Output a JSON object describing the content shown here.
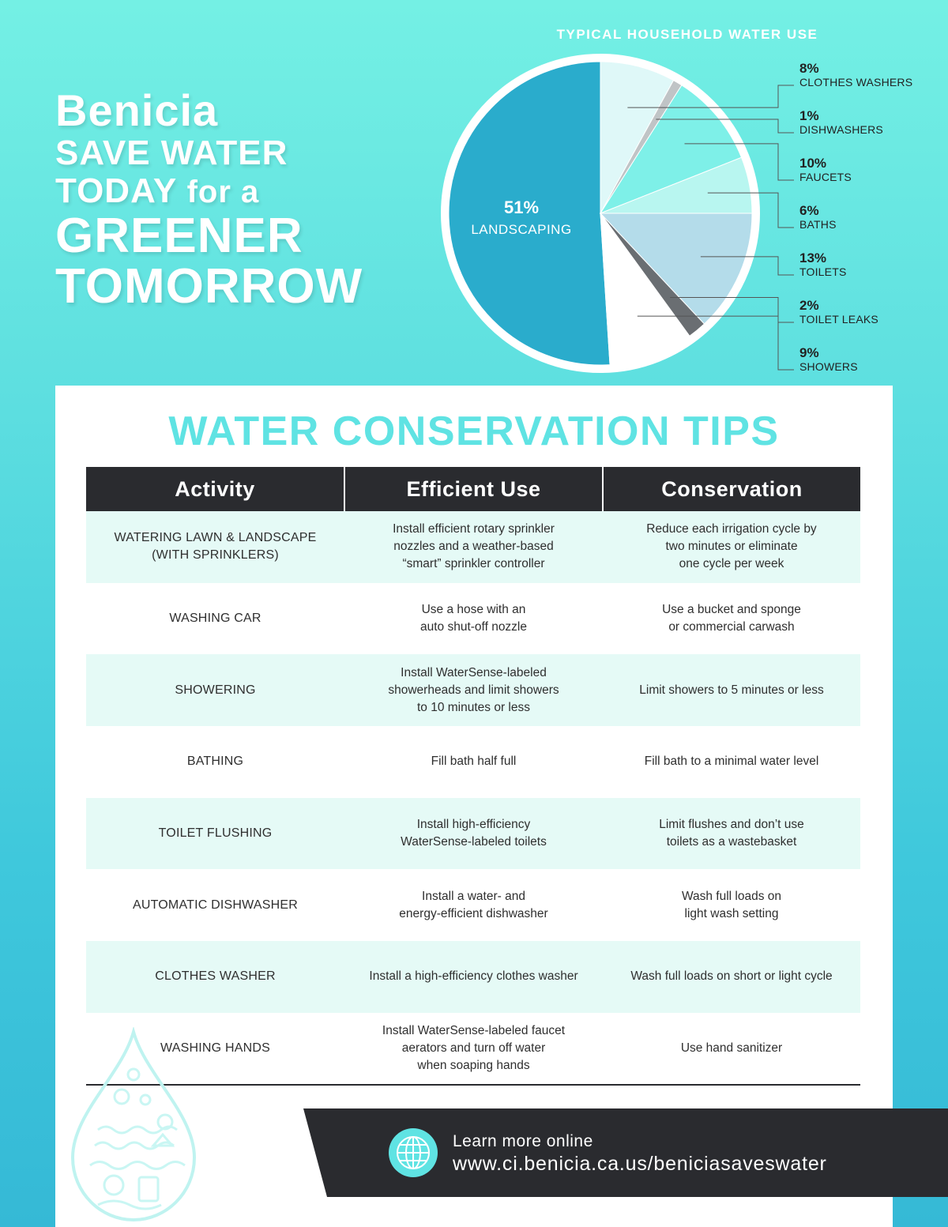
{
  "header": {
    "line1": "Benicia",
    "line2": "SAVE WATER",
    "line3a": "TODAY",
    "line3b": "for a",
    "line4": "GREENER",
    "line5": "TOMORROW"
  },
  "chart_data": {
    "type": "pie",
    "title": "TYPICAL HOUSEHOLD WATER USE",
    "slices": [
      {
        "label": "LANDSCAPING",
        "pct": "51%",
        "value": 51,
        "color": "#2aaccc"
      },
      {
        "label": "CLOTHES WASHERS",
        "pct": "8%",
        "value": 8,
        "color": "#dff8f8"
      },
      {
        "label": "DISHWASHERS",
        "pct": "1%",
        "value": 1,
        "color": "#c0c4c6"
      },
      {
        "label": "FAUCETS",
        "pct": "10%",
        "value": 10,
        "color": "#7ef0e8"
      },
      {
        "label": "BATHS",
        "pct": "6%",
        "value": 6,
        "color": "#b8f6f0"
      },
      {
        "label": "TOILETS",
        "pct": "13%",
        "value": 13,
        "color": "#b4dcea"
      },
      {
        "label": "TOILET LEAKS",
        "pct": "2%",
        "value": 2,
        "color": "#6a6e72"
      },
      {
        "label": "SHOWERS",
        "pct": "9%",
        "value": 9,
        "color": "#ffffff"
      }
    ]
  },
  "tips": {
    "title": "WATER CONSERVATION TIPS",
    "columns": [
      "Activity",
      "Efficient Use",
      "Conservation"
    ],
    "rows": [
      {
        "activity": "WATERING LAWN & LANDSCAPE\n(WITH SPRINKLERS)",
        "efficient": "Install efficient rotary sprinkler\nnozzles and a weather-based\n“smart” sprinkler controller",
        "conservation": "Reduce each irrigation cycle by\ntwo minutes or eliminate\none cycle per week"
      },
      {
        "activity": "WASHING CAR",
        "efficient": "Use a hose with an\nauto shut-off nozzle",
        "conservation": "Use a bucket and sponge\nor commercial carwash"
      },
      {
        "activity": "SHOWERING",
        "efficient": "Install WaterSense-labeled\nshowerheads and limit showers\nto 10 minutes or less",
        "conservation": "Limit showers to 5 minutes or less"
      },
      {
        "activity": "BATHING",
        "efficient": "Fill bath half full",
        "conservation": "Fill bath to a minimal water level"
      },
      {
        "activity": "TOILET FLUSHING",
        "efficient": "Install high-efficiency\nWaterSense-labeled toilets",
        "conservation": "Limit flushes and don’t use\ntoilets as a wastebasket"
      },
      {
        "activity": "AUTOMATIC DISHWASHER",
        "efficient": "Install a water- and\nenergy-efficient dishwasher",
        "conservation": "Wash full loads on\nlight wash setting"
      },
      {
        "activity": "CLOTHES WASHER",
        "efficient": "Install a high-efficiency clothes washer",
        "conservation": "Wash full loads on short or light cycle"
      },
      {
        "activity": "WASHING HANDS",
        "efficient": "Install WaterSense-labeled faucet\naerators and turn off water\nwhen soaping hands",
        "conservation": "Use hand sanitizer"
      }
    ]
  },
  "footer": {
    "learn_more": "Learn more online",
    "url": "www.ci.benicia.ca.us/beniciasaveswater"
  },
  "icons": {
    "globe": "globe-icon",
    "droplet": "water-droplet-icon-illustration"
  },
  "colors": {
    "accent": "#5fe3e3",
    "dark": "#2a2b2f",
    "row_shade": "#e5faf6"
  }
}
